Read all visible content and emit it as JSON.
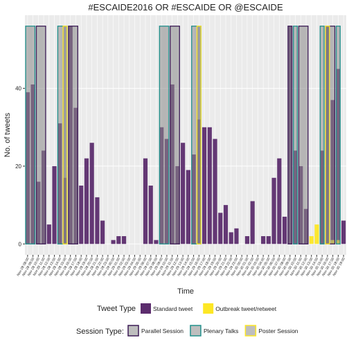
{
  "chart_data": {
    "type": "bar",
    "title": "#ESCAIDE2016 OR #ESCAIDE OR @ESCAIDE",
    "x_label": "Time",
    "y_label": "No. of tweets",
    "categories": [
      "Nov-28 08:00",
      "Nov-28 09:00",
      "Nov-28 10:00",
      "Nov-28 11:00",
      "Nov-28 12:00",
      "Nov-28 13:00",
      "Nov-28 14:00",
      "Nov-28 15:00",
      "Nov-28 16:00",
      "Nov-28 17:00",
      "Nov-28 18:00",
      "Nov-28 19:00",
      "Nov-28 20:00",
      "Nov-28 21:00",
      "Nov-28 22:00",
      "Nov-28 23:00",
      "Nov-29 00:00",
      "Nov-29 01:00",
      "Nov-29 02:00",
      "Nov-29 03:00",
      "Nov-29 04:00",
      "Nov-29 05:00",
      "Nov-29 06:00",
      "Nov-29 07:00",
      "Nov-29 08:00",
      "Nov-29 09:00",
      "Nov-29 10:00",
      "Nov-29 11:00",
      "Nov-29 12:00",
      "Nov-29 13:00",
      "Nov-29 14:00",
      "Nov-29 15:00",
      "Nov-29 16:00",
      "Nov-29 17:00",
      "Nov-29 18:00",
      "Nov-29 19:00",
      "Nov-29 20:00",
      "Nov-29 21:00",
      "Nov-29 22:00",
      "Nov-29 23:00",
      "Nov-30 00:00",
      "Nov-30 01:00",
      "Nov-30 02:00",
      "Nov-30 03:00",
      "Nov-30 04:00",
      "Nov-30 05:00",
      "Nov-30 06:00",
      "Nov-30 07:00",
      "Nov-30 08:00",
      "Nov-30 09:00",
      "Nov-30 10:00",
      "Nov-30 11:00",
      "Nov-30 12:00",
      "Nov-30 13:00",
      "Nov-30 14:00",
      "Nov-30 15:00",
      "Nov-30 16:00",
      "Nov-30 17:00",
      "Nov-30 18:00",
      "Nov-30 19:00"
    ],
    "series": [
      {
        "name": "Standard tweet",
        "color": "#5c2d6e",
        "values": [
          39,
          41,
          16,
          24,
          5,
          20,
          31,
          17,
          56,
          35,
          15,
          22,
          26,
          12,
          6,
          0,
          1,
          2,
          2,
          0,
          0,
          0,
          22,
          15,
          1,
          30,
          27,
          41,
          20,
          26,
          19,
          23,
          32,
          30,
          30,
          27,
          8,
          10,
          3,
          4,
          0,
          2,
          11,
          0,
          2,
          2,
          17,
          22,
          7,
          56,
          24,
          20,
          9,
          0,
          0,
          24,
          56,
          36,
          44,
          6
        ]
      },
      {
        "name": "Outbreak tweet/retweet",
        "color": "#fde725",
        "values": [
          0,
          0,
          0,
          0,
          0,
          0,
          0,
          0,
          0,
          0,
          0,
          0,
          0,
          0,
          0,
          0,
          0,
          0,
          0,
          0,
          0,
          0,
          0,
          0,
          0,
          0,
          0,
          0,
          0,
          0,
          0,
          0,
          0,
          0,
          0,
          0,
          0,
          0,
          0,
          0,
          0,
          0,
          0,
          0,
          0,
          0,
          0,
          0,
          0,
          0,
          0,
          0,
          0,
          2,
          5,
          0,
          0,
          1,
          1,
          0
        ]
      }
    ],
    "tweet_legend_title": "Tweet Type",
    "session_legend_title": "Session Type:",
    "session_types": [
      {
        "name": "Parallel Session",
        "color": "#3b1a55"
      },
      {
        "name": "Plenary Talks",
        "color": "#21908c"
      },
      {
        "name": "Poster Session",
        "color": "#fde725"
      }
    ],
    "sessions": [
      {
        "type": "Plenary Talks",
        "start": "Nov-28 08:00",
        "end": "Nov-28 09:00",
        "height": 56
      },
      {
        "type": "Parallel Session",
        "start": "Nov-28 10:00",
        "end": "Nov-28 11:00",
        "height": 56
      },
      {
        "type": "Plenary Talks",
        "start": "Nov-28 14:00",
        "end": "Nov-28 15:00",
        "height": 56
      },
      {
        "type": "Poster Session",
        "start": "Nov-28 15:00",
        "end": "Nov-28 15:00",
        "height": 56
      },
      {
        "type": "Parallel Session",
        "start": "Nov-28 16:00",
        "end": "Nov-28 17:00",
        "height": 56
      },
      {
        "type": "Plenary Talks",
        "start": "Nov-29 09:00",
        "end": "Nov-29 10:00",
        "height": 56
      },
      {
        "type": "Parallel Session",
        "start": "Nov-29 11:00",
        "end": "Nov-29 12:00",
        "height": 56
      },
      {
        "type": "Plenary Talks",
        "start": "Nov-29 15:00",
        "end": "Nov-29 16:00",
        "height": 56
      },
      {
        "type": "Poster Session",
        "start": "Nov-29 16:00",
        "end": "Nov-29 16:00",
        "height": 56
      },
      {
        "type": "Parallel Session",
        "start": "Nov-30 09:00",
        "end": "Nov-30 09:00",
        "height": 56
      },
      {
        "type": "Plenary Talks",
        "start": "Nov-30 10:00",
        "end": "Nov-30 10:00",
        "height": 56
      },
      {
        "type": "Parallel Session",
        "start": "Nov-30 11:00",
        "end": "Nov-30 12:00",
        "height": 56
      },
      {
        "type": "Plenary Talks",
        "start": "Nov-30 15:00",
        "end": "Nov-30 15:00",
        "height": 56
      },
      {
        "type": "Parallel Session",
        "start": "Nov-30 16:00",
        "end": "Nov-30 17:00",
        "height": 56
      },
      {
        "type": "Poster Session",
        "start": "Nov-30 16:00",
        "end": "Nov-30 16:00",
        "height": 56
      },
      {
        "type": "Plenary Talks",
        "start": "Nov-30 18:00",
        "end": "Nov-30 18:00",
        "height": 56
      }
    ],
    "ylim": [
      -2.8,
      58.8
    ],
    "yticks": [
      0,
      20,
      40
    ],
    "grid": true
  }
}
